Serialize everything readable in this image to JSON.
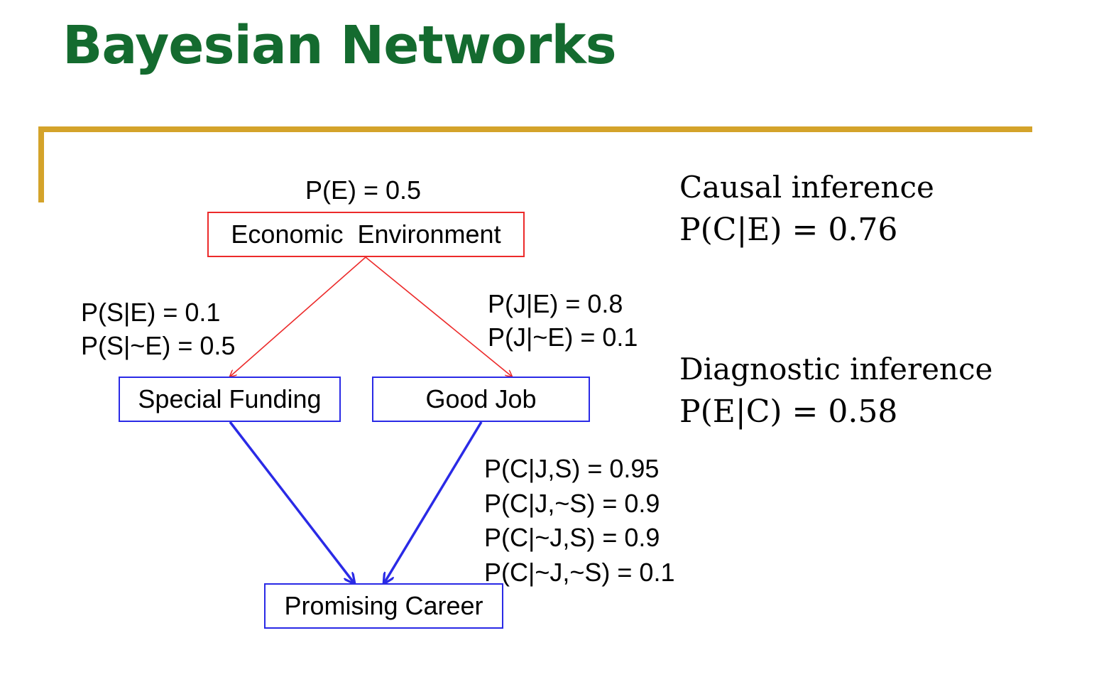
{
  "title": "Bayesian Networks",
  "colors": {
    "title": "#146b2f",
    "accent_rule": "#d4a32a",
    "root_edge": "#ec2a2a",
    "child_edge": "#2a2ae6"
  },
  "nodes": {
    "economic_environment": "Economic  Environment",
    "special_funding": "Special Funding",
    "good_job": "Good Job",
    "promising_career": "Promising Career"
  },
  "cpt": {
    "environment": [
      "P(E) = 0.5"
    ],
    "funding": [
      "P(S|E) = 0.1",
      "P(S|~E) = 0.5"
    ],
    "job": [
      "P(J|E) = 0.8",
      "P(J|~E) = 0.1"
    ],
    "career": [
      "P(C|J,S) = 0.95",
      "P(C|J,~S) = 0.9",
      "P(C|~J,S) = 0.9",
      "P(C|~J,~S) = 0.1"
    ]
  },
  "inference": {
    "causal": {
      "heading": "Causal inference",
      "value": "P(C|E) = 0.76"
    },
    "diagnostic": {
      "heading": "Diagnostic inference",
      "value": "P(E|C) = 0.58"
    }
  }
}
